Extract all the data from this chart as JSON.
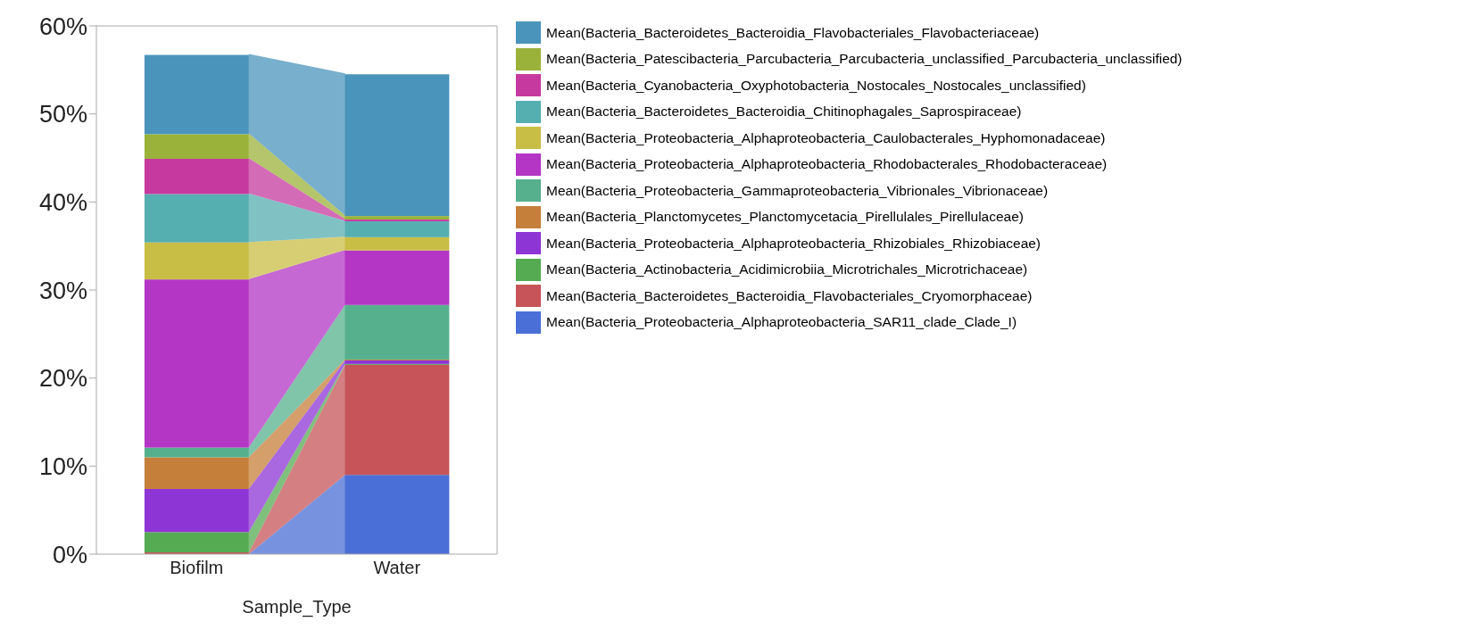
{
  "chart_data": {
    "type": "bar",
    "stacked": true,
    "xlabel": "Sample_Type",
    "categories": [
      "Biofilm",
      "Water"
    ],
    "series": [
      {
        "name": "Mean(Bacteria_Proteobacteria_Alphaproteobacteria_SAR11_clade_Clade_I)",
        "color": "#4a6fd6",
        "values": [
          null,
          9.0
        ]
      },
      {
        "name": "Mean(Bacteria_Bacteroidetes_Bacteroidia_Flavobacteriales_Cryomorphaceae)",
        "color": "#c65458",
        "values": [
          0.2,
          12.5
        ]
      },
      {
        "name": "Mean(Bacteria_Actinobacteria_Acidimicrobiia_Microtrichales_Microtrichaceae)",
        "color": "#55ab52",
        "values": [
          2.3,
          0.1
        ]
      },
      {
        "name": "Mean(Bacteria_Proteobacteria_Alphaproteobacteria_Rhizobiales_Rhizobiaceae)",
        "color": "#8e35d6",
        "values": [
          4.9,
          0.4
        ]
      },
      {
        "name": "Mean(Bacteria_Planctomycetes_Planctomycetacia_Pirellulales_Pirellulaceae)",
        "color": "#c67f3a",
        "values": [
          3.6,
          0.1
        ]
      },
      {
        "name": "Mean(Bacteria_Proteobacteria_Gammaproteobacteria_Vibrionales_Vibrionaceae)",
        "color": "#56b08e",
        "values": [
          1.1,
          6.2
        ]
      },
      {
        "name": "Mean(Bacteria_Proteobacteria_Alphaproteobacteria_Rhodobacterales_Rhodobacteraceae)",
        "color": "#b336c4",
        "values": [
          19.1,
          6.2
        ]
      },
      {
        "name": "Mean(Bacteria_Proteobacteria_Alphaproteobacteria_Caulobacterales_Hyphomonadaceae)",
        "color": "#c9be45",
        "values": [
          4.2,
          1.5
        ]
      },
      {
        "name": "Mean(Bacteria_Bacteroidetes_Bacteroidia_Chitinophagales_Saprospiraceae)",
        "color": "#55aeb0",
        "values": [
          5.5,
          1.8
        ]
      },
      {
        "name": "Mean(Bacteria_Cyanobacteria_Oxyphotobacteria_Nostocales_Nostocales_unclassified)",
        "color": "#c63a9f",
        "values": [
          4.0,
          0.2
        ]
      },
      {
        "name": "Mean(Bacteria_Patescibacteria_Parcubacteria_Parcubacteria_unclassified_Parcubacteria_unclassified)",
        "color": "#9bb23a",
        "values": [
          2.8,
          0.4
        ]
      },
      {
        "name": "Mean(Bacteria_Bacteroidetes_Bacteroidia_Flavobacteriales_Flavobacteriaceae)",
        "color": "#4a94bb",
        "values": [
          9.0,
          16.1
        ]
      }
    ],
    "ylim": [
      0,
      60
    ],
    "yticks": [
      {
        "value": 0,
        "label": "0%"
      },
      {
        "value": 10,
        "label": "10%"
      },
      {
        "value": 20,
        "label": "20%"
      },
      {
        "value": 30,
        "label": "30%"
      },
      {
        "value": 40,
        "label": "40%"
      },
      {
        "value": 50,
        "label": "50%"
      },
      {
        "value": 60,
        "label": "60%"
      }
    ],
    "grid": false,
    "legend": "right"
  }
}
